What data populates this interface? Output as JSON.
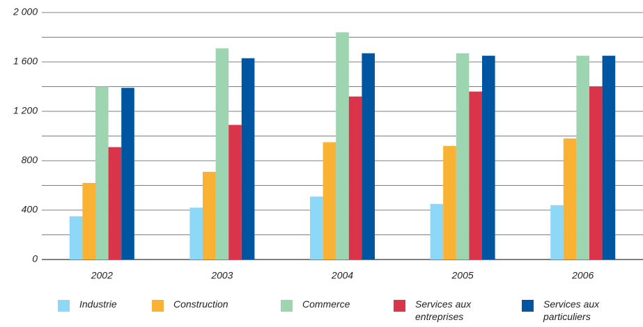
{
  "chart_data": {
    "type": "bar",
    "categories": [
      "2002",
      "2003",
      "2004",
      "2005",
      "2006"
    ],
    "series": [
      {
        "name": "Industrie",
        "color": "#8dd8f8",
        "values": [
          350,
          420,
          510,
          450,
          440
        ]
      },
      {
        "name": "Construction",
        "color": "#f9b233",
        "values": [
          620,
          710,
          950,
          920,
          980
        ]
      },
      {
        "name": "Commerce",
        "color": "#9dd5b0",
        "values": [
          1400,
          1710,
          1840,
          1670,
          1650
        ]
      },
      {
        "name": "Services aux entreprises",
        "color": "#d9344a",
        "values": [
          910,
          1090,
          1320,
          1360,
          1400
        ]
      },
      {
        "name": "Services aux particuliers",
        "color": "#0055a0",
        "values": [
          1390,
          1630,
          1670,
          1650,
          1650
        ]
      }
    ],
    "ylim": [
      0,
      2000
    ],
    "yticks": [
      0,
      400,
      800,
      {
        "value": 1200,
        "label": "1 200"
      },
      {
        "value": 1600,
        "label": "1 600"
      },
      {
        "value": 2000,
        "label": "2 000"
      }
    ],
    "grid": true
  }
}
